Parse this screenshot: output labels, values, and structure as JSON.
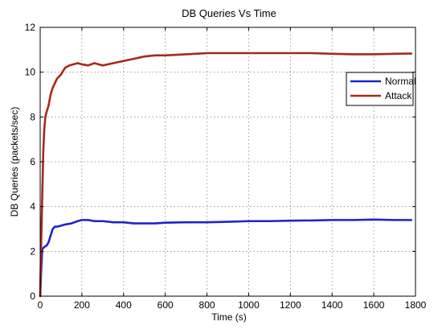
{
  "chart_data": {
    "type": "line",
    "title": "DB Queries Vs Time",
    "xlabel": "Time (s)",
    "ylabel": "DB Queries (packets/sec)",
    "xlim": [
      0,
      1800
    ],
    "ylim": [
      0,
      12
    ],
    "xticks": [
      0,
      200,
      400,
      600,
      800,
      1000,
      1200,
      1400,
      1600,
      1800
    ],
    "yticks": [
      0,
      2,
      4,
      6,
      8,
      10,
      12
    ],
    "grid": true,
    "legend_position": "top-right",
    "series": [
      {
        "name": "Normal",
        "color": "#1f24c8",
        "x": [
          0,
          5,
          10,
          20,
          30,
          40,
          50,
          60,
          70,
          80,
          100,
          120,
          150,
          180,
          200,
          230,
          260,
          300,
          350,
          400,
          450,
          500,
          550,
          600,
          700,
          800,
          900,
          1000,
          1100,
          1200,
          1300,
          1400,
          1500,
          1600,
          1700,
          1780
        ],
        "y": [
          0,
          1.2,
          2.1,
          2.2,
          2.25,
          2.4,
          2.7,
          3.0,
          3.1,
          3.1,
          3.15,
          3.2,
          3.25,
          3.35,
          3.4,
          3.4,
          3.35,
          3.35,
          3.3,
          3.3,
          3.25,
          3.25,
          3.25,
          3.28,
          3.3,
          3.3,
          3.32,
          3.35,
          3.35,
          3.37,
          3.38,
          3.4,
          3.4,
          3.42,
          3.4,
          3.4
        ]
      },
      {
        "name": "Attack",
        "color": "#a52a1a",
        "x": [
          0,
          5,
          10,
          15,
          20,
          25,
          30,
          40,
          50,
          60,
          70,
          80,
          100,
          120,
          140,
          160,
          180,
          200,
          230,
          260,
          300,
          350,
          400,
          450,
          500,
          550,
          600,
          700,
          800,
          900,
          1000,
          1100,
          1200,
          1300,
          1400,
          1500,
          1600,
          1700,
          1780
        ],
        "y": [
          0,
          2.5,
          4.5,
          6.5,
          7.5,
          8.0,
          8.2,
          8.5,
          9.0,
          9.3,
          9.5,
          9.7,
          9.9,
          10.2,
          10.3,
          10.35,
          10.4,
          10.35,
          10.3,
          10.4,
          10.3,
          10.4,
          10.5,
          10.6,
          10.7,
          10.75,
          10.75,
          10.8,
          10.85,
          10.85,
          10.85,
          10.85,
          10.85,
          10.85,
          10.82,
          10.8,
          10.8,
          10.82,
          10.83
        ]
      }
    ]
  }
}
